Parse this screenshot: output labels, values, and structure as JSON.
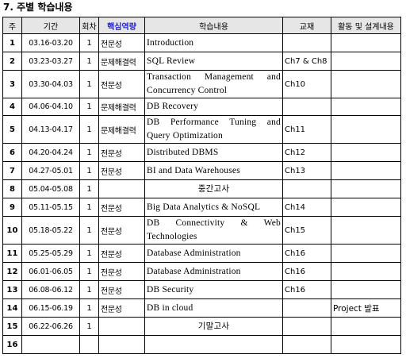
{
  "section_title": "7. 주별 학습내용",
  "headers": {
    "week": "주",
    "period": "기간",
    "sessions": "회차",
    "core_competency": "핵심역량",
    "content": "학습내용",
    "textbook": "교재",
    "activities": "활동 및 설계내용"
  },
  "colors": {
    "header_background": "#e6e6e6",
    "core_competency_header_text": "#1f1fd8"
  },
  "rows": [
    {
      "week": "1",
      "period": "03.16-03.20",
      "sessions": "1",
      "competency": "전문성",
      "content": "Introduction",
      "textbook": "",
      "activity": ""
    },
    {
      "week": "2",
      "period": "03.23-03.27",
      "sessions": "1",
      "competency": "문제해결력",
      "content": "SQL Review",
      "textbook": "Ch7 & Ch8",
      "activity": ""
    },
    {
      "week": "3",
      "period": "03.30-04.03",
      "sessions": "1",
      "competency": "전문성",
      "content": "Transaction Management and Concurrency Control",
      "textbook": "Ch10",
      "activity": ""
    },
    {
      "week": "4",
      "period": "04.06-04.10",
      "sessions": "1",
      "competency": "문제해결력",
      "content": "DB Recovery",
      "textbook": "",
      "activity": ""
    },
    {
      "week": "5",
      "period": "04.13-04.17",
      "sessions": "1",
      "competency": "문제해결력",
      "content": "DB Performance Tuning and Query Optimization",
      "textbook": "Ch11",
      "activity": ""
    },
    {
      "week": "6",
      "period": "04.20-04.24",
      "sessions": "1",
      "competency": "전문성",
      "content": "Distributed DBMS",
      "textbook": "Ch12",
      "activity": ""
    },
    {
      "week": "7",
      "period": "04.27-05.01",
      "sessions": "1",
      "competency": "전문성",
      "content": "BI and Data Warehouses",
      "textbook": "Ch13",
      "activity": ""
    },
    {
      "week": "8",
      "period": "05.04-05.08",
      "sessions": "1",
      "competency": "",
      "content": "중간고사",
      "textbook": "",
      "activity": ""
    },
    {
      "week": "9",
      "period": "05.11-05.15",
      "sessions": "1",
      "competency": "전문성",
      "content": "Big Data Analytics & NoSQL",
      "textbook": "Ch14",
      "activity": ""
    },
    {
      "week": "10",
      "period": "05.18-05.22",
      "sessions": "1",
      "competency": "전문성",
      "content": "DB Connectivity & Web Technologies",
      "textbook": "Ch15",
      "activity": ""
    },
    {
      "week": "11",
      "period": "05.25-05.29",
      "sessions": "1",
      "competency": "전문성",
      "content": "Database Administration",
      "textbook": "Ch16",
      "activity": ""
    },
    {
      "week": "12",
      "period": "06.01-06.05",
      "sessions": "1",
      "competency": "전문성",
      "content": "Database Administration",
      "textbook": "Ch16",
      "activity": ""
    },
    {
      "week": "13",
      "period": "06.08-06.12",
      "sessions": "1",
      "competency": "전문성",
      "content": "DB Security",
      "textbook": "Ch16",
      "activity": ""
    },
    {
      "week": "14",
      "period": "06.15-06.19",
      "sessions": "1",
      "competency": "전문성",
      "content": "DB in cloud",
      "textbook": "",
      "activity": "Project 발표"
    },
    {
      "week": "15",
      "period": "06.22-06.26",
      "sessions": "1",
      "competency": "",
      "content": "기말고사",
      "textbook": "",
      "activity": ""
    },
    {
      "week": "16",
      "period": "",
      "sessions": "",
      "competency": "",
      "content": "",
      "textbook": "",
      "activity": ""
    }
  ]
}
